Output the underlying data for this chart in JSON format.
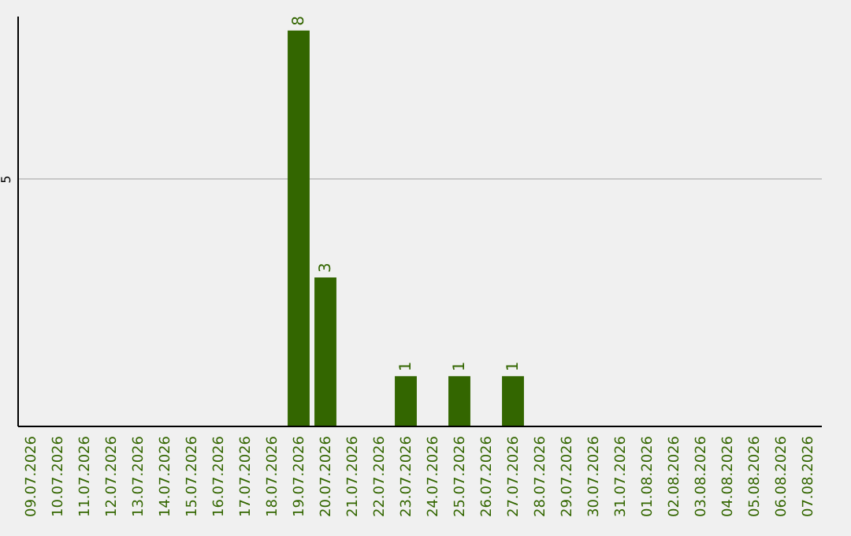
{
  "chart_data": {
    "type": "bar",
    "categories": [
      "09.07.2026",
      "10.07.2026",
      "11.07.2026",
      "12.07.2026",
      "13.07.2026",
      "14.07.2026",
      "15.07.2026",
      "16.07.2026",
      "17.07.2026",
      "18.07.2026",
      "19.07.2026",
      "20.07.2026",
      "21.07.2026",
      "22.07.2026",
      "23.07.2026",
      "24.07.2026",
      "25.07.2026",
      "26.07.2026",
      "27.07.2026",
      "28.07.2026",
      "29.07.2026",
      "30.07.2026",
      "31.07.2026",
      "01.08.2026",
      "02.08.2026",
      "03.08.2026",
      "04.08.2026",
      "05.08.2026",
      "06.08.2026",
      "07.08.2026"
    ],
    "values": [
      0,
      0,
      0,
      0,
      0,
      0,
      0,
      0,
      0,
      0,
      8,
      3,
      0,
      0,
      1,
      0,
      1,
      0,
      1,
      0,
      0,
      0,
      0,
      0,
      0,
      0,
      0,
      0,
      0,
      0
    ],
    "value_labels": [
      null,
      null,
      null,
      null,
      null,
      null,
      null,
      null,
      null,
      null,
      "8",
      "3",
      null,
      null,
      "1",
      null,
      "1",
      null,
      "1",
      null,
      null,
      null,
      null,
      null,
      null,
      null,
      null,
      null,
      null,
      null
    ],
    "color": "#336600",
    "ylim": [
      0,
      8.3
    ],
    "yticks": [
      5
    ],
    "grid": "y"
  }
}
